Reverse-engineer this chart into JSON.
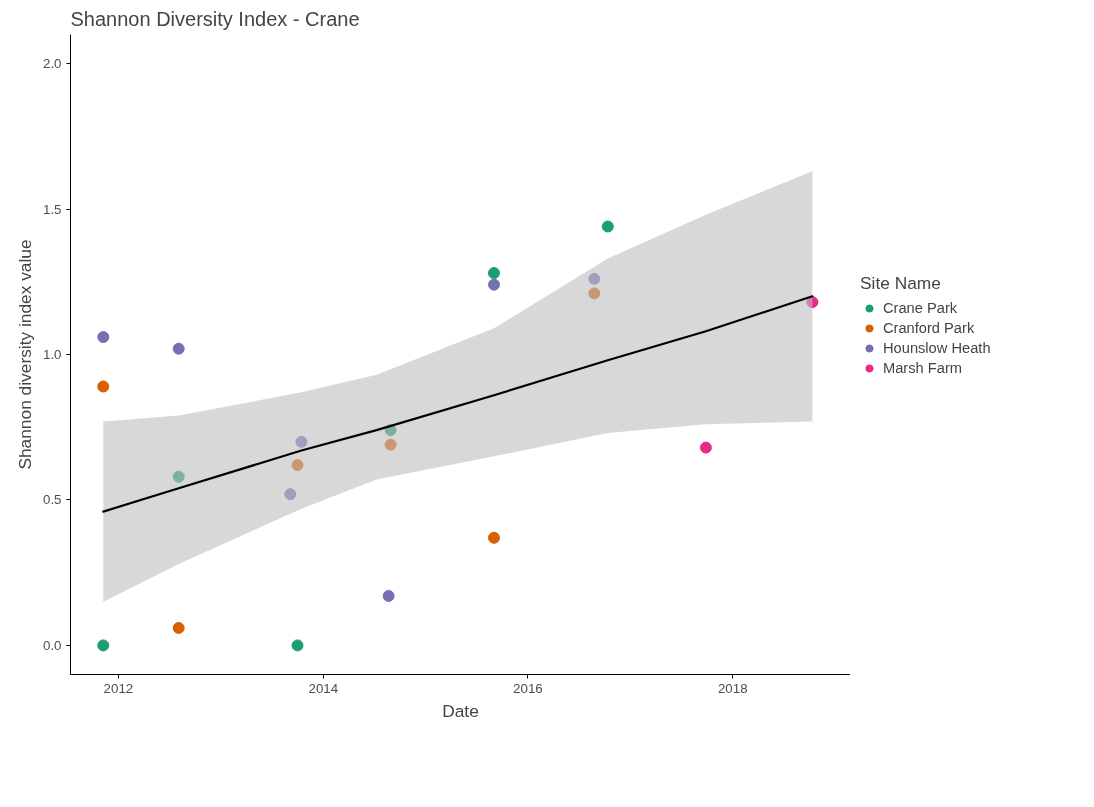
{
  "chart_data": {
    "type": "scatter",
    "title": "Shannon Diversity Index - Crane",
    "xlabel": "Date",
    "ylabel": "Shannon diversity index value",
    "legend_title": "Site Name",
    "legend": "right",
    "grid": false,
    "marker": "circle",
    "xlim": [
      "2011-07-14",
      "2019-02-25"
    ],
    "xticks": [
      "2012",
      "2014",
      "2016",
      "2018"
    ],
    "ylim": [
      -0.1,
      2.1
    ],
    "yticks": [
      {
        "value": 0,
        "label": "0.0"
      },
      {
        "value": 0.5,
        "label": "0.5"
      },
      {
        "value": 1,
        "label": "1.0"
      },
      {
        "value": 1.5,
        "label": "1.5"
      },
      {
        "value": 2,
        "label": "2.0"
      }
    ],
    "series": [
      {
        "name": "Crane Park",
        "color": "#1b9e77",
        "x": [
          "2011-11-08",
          "2012-08-03",
          "2013-10-01",
          "2014-08-29",
          "2015-09-02",
          "2016-10-12"
        ],
        "values": [
          0,
          0.58,
          0,
          0.74,
          1.28,
          1.44
        ]
      },
      {
        "name": "Cranford Park",
        "color": "#d95f02",
        "x": [
          "2011-11-08",
          "2012-08-03",
          "2013-10-01",
          "2014-08-29",
          "2015-09-02",
          "2016-08-25"
        ],
        "values": [
          0.89,
          0.06,
          0.62,
          0.69,
          0.37,
          1.21
        ]
      },
      {
        "name": "Hounslow Heath",
        "color": "#7570b3",
        "x": [
          "2011-11-08",
          "2012-08-03",
          "2013-09-05",
          "2013-10-15",
          "2014-08-22",
          "2015-09-02",
          "2016-08-25"
        ],
        "values": [
          1.06,
          1.02,
          0.52,
          0.7,
          0.17,
          1.24,
          1.26
        ]
      },
      {
        "name": "Marsh Farm",
        "color": "#e7298a",
        "x": [
          "2017-09-27",
          "2018-10-12"
        ],
        "values": [
          0.68,
          1.18
        ]
      },
      {
        "type": "line",
        "marker": "none",
        "color": "#000000",
        "x": [
          "2011-11-08",
          "2012-08-03",
          "2013-10-15",
          "2014-07-10",
          "2015-09-02",
          "2016-10-12",
          "2017-09-27",
          "2018-10-12"
        ],
        "values": [
          0.46,
          0.54,
          0.67,
          0.74,
          0.86,
          0.98,
          1.08,
          1.2
        ],
        "lower": [
          0.15,
          0.28,
          0.47,
          0.57,
          0.65,
          0.73,
          0.76,
          0.77
        ],
        "upper": [
          0.77,
          0.79,
          0.87,
          0.93,
          1.09,
          1.33,
          1.48,
          1.63
        ]
      }
    ]
  }
}
